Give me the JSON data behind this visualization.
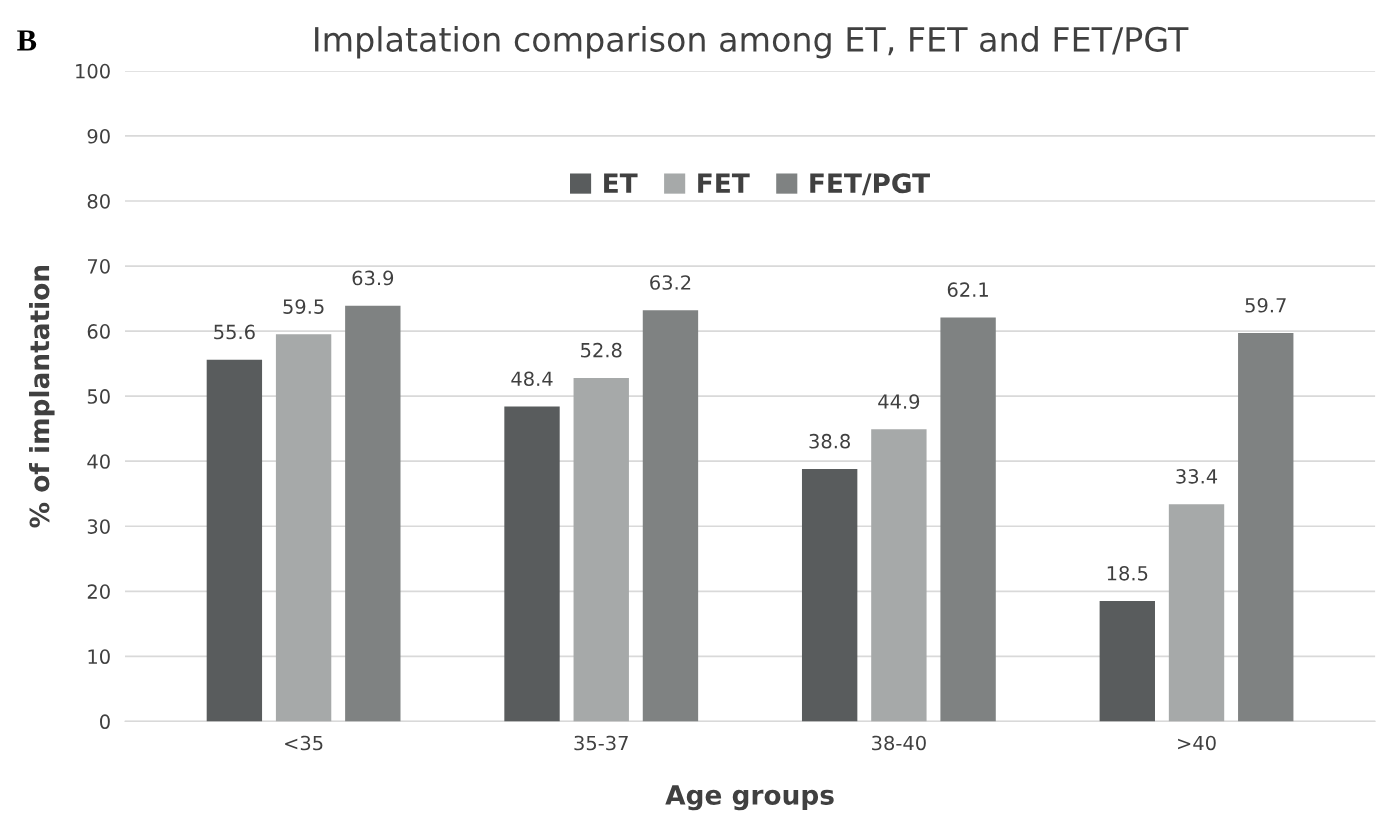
{
  "chart_data": {
    "type": "bar",
    "title": "Implatation comparison among ET, FET and FET/PGT",
    "xlabel": "Age groups",
    "ylabel": "% of implantation",
    "annotations": [
      "B"
    ],
    "categories": [
      "<35",
      "35-37",
      "38-40",
      ">40"
    ],
    "series": [
      {
        "name": "ET",
        "color": "#595c5d",
        "values": [
          55.6,
          48.4,
          38.8,
          18.5
        ]
      },
      {
        "name": "FET",
        "color": "#a6a9a9",
        "values": [
          59.5,
          52.8,
          44.9,
          33.4
        ]
      },
      {
        "name": "FET/PGT",
        "color": "#7f8282",
        "values": [
          63.9,
          63.2,
          62.1,
          59.7
        ]
      }
    ],
    "ylim": [
      0,
      100
    ],
    "yticks": [
      0,
      10,
      20,
      30,
      40,
      50,
      60,
      70,
      80,
      90,
      100
    ],
    "grid": "y",
    "legend": "top",
    "data_labels": true
  }
}
